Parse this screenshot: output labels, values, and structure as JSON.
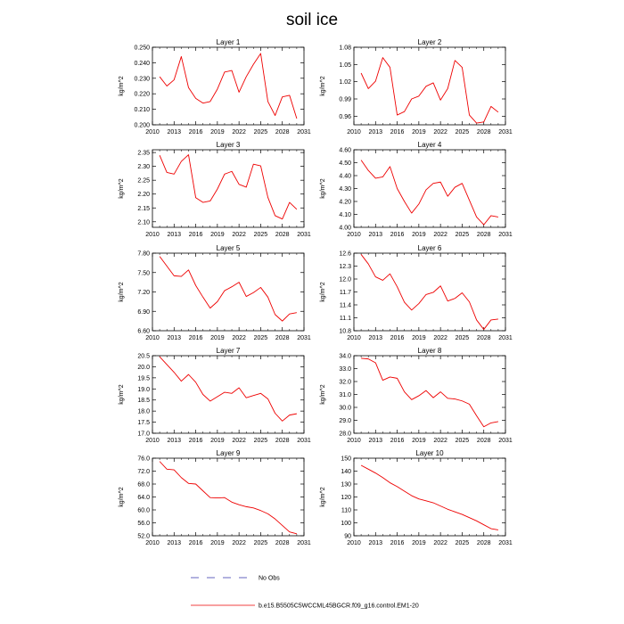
{
  "figure": {
    "title": "soil ice",
    "colors": {
      "series": "#ee0000",
      "obs": "#3333aa",
      "axis": "#000000"
    }
  },
  "legend": {
    "obs_label": "No Obs",
    "series_label": "b.e15.B5505C5WCCML45BGCR.f09_g16.control.EM1-20"
  },
  "chart_data": [
    {
      "type": "line",
      "title": "Layer 1",
      "ylabel": "kg/m^2",
      "xticks": [
        "2010",
        "2013",
        "2016",
        "2019",
        "2022",
        "2025",
        "2028",
        "2031"
      ],
      "yticks": [
        "0.200",
        "0.210",
        "0.220",
        "0.230",
        "0.240",
        "0.250"
      ],
      "xlim": [
        2010,
        2031
      ],
      "ylim": [
        0.2,
        0.25
      ],
      "series": [
        {
          "x": [
            2011,
            2012,
            2013,
            2014,
            2015,
            2016,
            2017,
            2018,
            2019,
            2020,
            2021,
            2022,
            2023,
            2024,
            2025,
            2026,
            2027,
            2028,
            2029,
            2030
          ],
          "values": [
            0.231,
            0.225,
            0.229,
            0.244,
            0.224,
            0.217,
            0.214,
            0.215,
            0.223,
            0.234,
            0.235,
            0.221,
            0.231,
            0.239,
            0.246,
            0.215,
            0.206,
            0.218,
            0.219,
            0.204
          ]
        }
      ]
    },
    {
      "type": "line",
      "title": "Layer 2",
      "ylabel": "kg/m^2",
      "xticks": [
        "2010",
        "2013",
        "2016",
        "2019",
        "2022",
        "2025",
        "2028",
        "2031"
      ],
      "yticks": [
        "0.96",
        "0.99",
        "1.02",
        "1.05",
        "1.08"
      ],
      "xlim": [
        2010,
        2031
      ],
      "ylim": [
        0.945,
        1.08
      ],
      "series": [
        {
          "x": [
            2011,
            2012,
            2013,
            2014,
            2015,
            2016,
            2017,
            2018,
            2019,
            2020,
            2021,
            2022,
            2023,
            2024,
            2025,
            2026,
            2027,
            2028,
            2029,
            2030
          ],
          "values": [
            1.035,
            1.008,
            1.021,
            1.062,
            1.045,
            0.962,
            0.968,
            0.99,
            0.995,
            1.012,
            1.018,
            0.988,
            1.008,
            1.057,
            1.045,
            0.962,
            0.948,
            0.95,
            0.977,
            0.967
          ]
        }
      ]
    },
    {
      "type": "line",
      "title": "Layer 3",
      "ylabel": "kg/m^2",
      "xticks": [
        "2010",
        "2013",
        "2016",
        "2019",
        "2022",
        "2025",
        "2028",
        "2031"
      ],
      "yticks": [
        "2.10",
        "2.15",
        "2.20",
        "2.25",
        "2.30",
        "2.35"
      ],
      "xlim": [
        2010,
        2031
      ],
      "ylim": [
        2.08,
        2.36
      ],
      "series": [
        {
          "x": [
            2011,
            2012,
            2013,
            2014,
            2015,
            2016,
            2017,
            2018,
            2019,
            2020,
            2021,
            2022,
            2023,
            2024,
            2025,
            2026,
            2027,
            2028,
            2029,
            2030
          ],
          "values": [
            2.34,
            2.278,
            2.272,
            2.318,
            2.342,
            2.187,
            2.17,
            2.175,
            2.218,
            2.272,
            2.282,
            2.235,
            2.225,
            2.308,
            2.302,
            2.188,
            2.122,
            2.11,
            2.17,
            2.145
          ]
        }
      ]
    },
    {
      "type": "line",
      "title": "Layer 4",
      "ylabel": "kg/m^2",
      "xticks": [
        "2010",
        "2013",
        "2016",
        "2019",
        "2022",
        "2025",
        "2028",
        "2031"
      ],
      "yticks": [
        "4.00",
        "4.10",
        "4.20",
        "4.30",
        "4.40",
        "4.50",
        "4.60"
      ],
      "xlim": [
        2010,
        2031
      ],
      "ylim": [
        4.0,
        4.6
      ],
      "series": [
        {
          "x": [
            2011,
            2012,
            2013,
            2014,
            2015,
            2016,
            2017,
            2018,
            2019,
            2020,
            2021,
            2022,
            2023,
            2024,
            2025,
            2026,
            2027,
            2028,
            2029,
            2030
          ],
          "values": [
            4.52,
            4.44,
            4.38,
            4.39,
            4.47,
            4.3,
            4.2,
            4.11,
            4.18,
            4.29,
            4.34,
            4.35,
            4.24,
            4.31,
            4.34,
            4.21,
            4.08,
            4.02,
            4.09,
            4.08
          ]
        }
      ]
    },
    {
      "type": "line",
      "title": "Layer 5",
      "ylabel": "kg/m^2",
      "xticks": [
        "2010",
        "2013",
        "2016",
        "2019",
        "2022",
        "2025",
        "2028",
        "2031"
      ],
      "yticks": [
        "6.60",
        "6.90",
        "7.20",
        "7.50",
        "7.80"
      ],
      "xlim": [
        2010,
        2031
      ],
      "ylim": [
        6.6,
        7.8
      ],
      "series": [
        {
          "x": [
            2011,
            2012,
            2013,
            2014,
            2015,
            2016,
            2017,
            2018,
            2019,
            2020,
            2021,
            2022,
            2023,
            2024,
            2025,
            2026,
            2027,
            2028,
            2029,
            2030
          ],
          "values": [
            7.75,
            7.6,
            7.45,
            7.44,
            7.54,
            7.3,
            7.12,
            6.95,
            7.05,
            7.22,
            7.28,
            7.35,
            7.13,
            7.19,
            7.27,
            7.12,
            6.85,
            6.75,
            6.86,
            6.88
          ]
        }
      ]
    },
    {
      "type": "line",
      "title": "Layer 6",
      "ylabel": "kg/m^2",
      "xticks": [
        "2010",
        "2013",
        "2016",
        "2019",
        "2022",
        "2025",
        "2028",
        "2031"
      ],
      "yticks": [
        "10.8",
        "11.1",
        "11.4",
        "11.7",
        "12.0",
        "12.3",
        "12.6"
      ],
      "xlim": [
        2010,
        2031
      ],
      "ylim": [
        10.8,
        12.6
      ],
      "series": [
        {
          "x": [
            2011,
            2012,
            2013,
            2014,
            2015,
            2016,
            2017,
            2018,
            2019,
            2020,
            2021,
            2022,
            2023,
            2024,
            2025,
            2026,
            2027,
            2028,
            2029,
            2030
          ],
          "values": [
            12.57,
            12.35,
            12.05,
            11.97,
            12.12,
            11.82,
            11.46,
            11.28,
            11.43,
            11.64,
            11.69,
            11.84,
            11.49,
            11.55,
            11.68,
            11.47,
            11.05,
            10.83,
            11.05,
            11.07
          ]
        }
      ]
    },
    {
      "type": "line",
      "title": "Layer 7",
      "ylabel": "kg/m^2",
      "xticks": [
        "2010",
        "2013",
        "2016",
        "2019",
        "2022",
        "2025",
        "2028",
        "2031"
      ],
      "yticks": [
        "17.0",
        "17.5",
        "18.0",
        "18.5",
        "19.0",
        "19.5",
        "20.0",
        "20.5"
      ],
      "xlim": [
        2010,
        2031
      ],
      "ylim": [
        17.0,
        20.5
      ],
      "series": [
        {
          "x": [
            2011,
            2012,
            2013,
            2014,
            2015,
            2016,
            2017,
            2018,
            2019,
            2020,
            2021,
            2022,
            2023,
            2024,
            2025,
            2026,
            2027,
            2028,
            2029,
            2030
          ],
          "values": [
            20.45,
            20.1,
            19.75,
            19.35,
            19.65,
            19.3,
            18.75,
            18.45,
            18.65,
            18.85,
            18.8,
            19.05,
            18.6,
            18.7,
            18.8,
            18.55,
            17.9,
            17.55,
            17.82,
            17.88
          ]
        }
      ]
    },
    {
      "type": "line",
      "title": "Layer 8",
      "ylabel": "kg/m^2",
      "xticks": [
        "2010",
        "2013",
        "2016",
        "2019",
        "2022",
        "2025",
        "2028",
        "2031"
      ],
      "yticks": [
        "28.0",
        "29.0",
        "30.0",
        "31.0",
        "32.0",
        "33.0",
        "34.0"
      ],
      "xlim": [
        2010,
        2031
      ],
      "ylim": [
        28.0,
        34.0
      ],
      "series": [
        {
          "x": [
            2011,
            2012,
            2013,
            2014,
            2015,
            2016,
            2017,
            2018,
            2019,
            2020,
            2021,
            2022,
            2023,
            2024,
            2025,
            2026,
            2027,
            2028,
            2029,
            2030
          ],
          "values": [
            33.8,
            33.75,
            33.45,
            32.1,
            32.35,
            32.25,
            31.2,
            30.6,
            30.9,
            31.3,
            30.75,
            31.2,
            30.7,
            30.65,
            30.5,
            30.25,
            29.35,
            28.5,
            28.8,
            28.9
          ]
        }
      ]
    },
    {
      "type": "line",
      "title": "Layer 9",
      "ylabel": "kg/m^2",
      "xticks": [
        "2010",
        "2013",
        "2016",
        "2019",
        "2022",
        "2025",
        "2028",
        "2031"
      ],
      "yticks": [
        "52.0",
        "56.0",
        "60.0",
        "64.0",
        "68.0",
        "72.0",
        "76.0"
      ],
      "xlim": [
        2010,
        2031
      ],
      "ylim": [
        52.0,
        76.0
      ],
      "series": [
        {
          "x": [
            2011,
            2012,
            2013,
            2014,
            2015,
            2016,
            2017,
            2018,
            2019,
            2020,
            2021,
            2022,
            2023,
            2024,
            2025,
            2026,
            2027,
            2028,
            2029,
            2030
          ],
          "values": [
            75.0,
            72.6,
            72.4,
            70.0,
            68.2,
            68.0,
            65.9,
            63.8,
            63.7,
            63.8,
            62.4,
            61.6,
            61.0,
            60.6,
            59.8,
            58.8,
            57.2,
            55.2,
            53.2,
            52.6
          ]
        }
      ]
    },
    {
      "type": "line",
      "title": "Layer 10",
      "ylabel": "kg/m^2",
      "xticks": [
        "2010",
        "2013",
        "2016",
        "2019",
        "2022",
        "2025",
        "2028",
        "2031"
      ],
      "yticks": [
        "90",
        "100",
        "110",
        "120",
        "130",
        "140",
        "150"
      ],
      "xlim": [
        2010,
        2031
      ],
      "ylim": [
        90,
        150
      ],
      "series": [
        {
          "x": [
            2011,
            2012,
            2013,
            2014,
            2015,
            2016,
            2017,
            2018,
            2019,
            2020,
            2021,
            2022,
            2023,
            2024,
            2025,
            2026,
            2027,
            2028,
            2029,
            2030
          ],
          "values": [
            144.5,
            141.5,
            138.5,
            135,
            131,
            128,
            124.5,
            121,
            118.5,
            117,
            115.5,
            113,
            110.5,
            108.5,
            106.5,
            104,
            101.5,
            98.5,
            95.5,
            94.5
          ]
        }
      ]
    }
  ]
}
